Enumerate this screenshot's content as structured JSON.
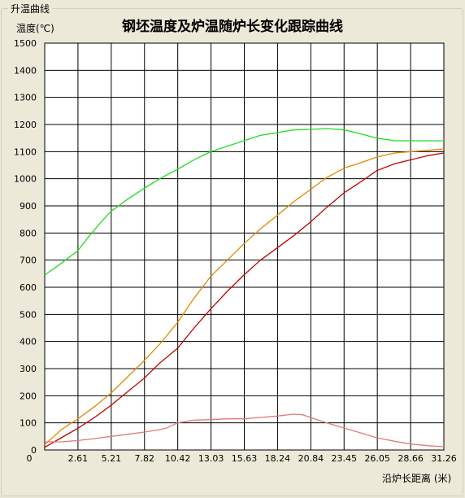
{
  "group_title": "升温曲线",
  "chart_data": {
    "type": "line",
    "title": "钢坯温度及炉温随炉长变化跟踪曲线",
    "ylabel": "温度(℃)",
    "xlabel": "沿炉长距离 (米)",
    "ylim": [
      0,
      1500
    ],
    "xlim": [
      0,
      31.26
    ],
    "grid": true,
    "yticks": [
      "0",
      "100",
      "200",
      "300",
      "400",
      "500",
      "600",
      "700",
      "800",
      "900",
      "1000",
      "1100",
      "1200",
      "1300",
      "1400",
      "1500"
    ],
    "xticks": [
      "0",
      "2.61",
      "5.21",
      "7.82",
      "10.42",
      "13.03",
      "15.63",
      "18.24",
      "20.84",
      "23.45",
      "26.05",
      "28.66",
      "31.26"
    ],
    "series": [
      {
        "color": "#22dd22",
        "x": [
          0,
          1.2,
          2.6,
          3.5,
          4.5,
          5.2,
          6.5,
          7.8,
          9.0,
          10.4,
          11.7,
          13.0,
          14.3,
          15.6,
          16.9,
          18.2,
          19.5,
          20.8,
          22.1,
          23.5,
          24.8,
          26.0,
          27.4,
          28.7,
          30.0,
          31.26
        ],
        "y": [
          645,
          685,
          735,
          790,
          845,
          880,
          925,
          965,
          1000,
          1035,
          1070,
          1100,
          1120,
          1140,
          1160,
          1170,
          1180,
          1182,
          1185,
          1180,
          1165,
          1150,
          1140,
          1140,
          1140,
          1140
        ]
      },
      {
        "color": "#e08a00",
        "x": [
          0,
          1.3,
          2.6,
          3.9,
          5.2,
          6.5,
          7.8,
          9.0,
          10.4,
          11.7,
          13.0,
          14.3,
          15.6,
          16.9,
          18.2,
          19.5,
          20.8,
          22.1,
          23.5,
          24.8,
          26.0,
          27.4,
          28.7,
          30.0,
          31.26
        ],
        "y": [
          20,
          75,
          115,
          160,
          210,
          270,
          330,
          390,
          470,
          560,
          640,
          700,
          760,
          815,
          865,
          915,
          960,
          1005,
          1040,
          1060,
          1080,
          1095,
          1100,
          1105,
          1110
        ]
      },
      {
        "color": "#c00000",
        "x": [
          0,
          1.3,
          2.6,
          3.9,
          5.2,
          6.5,
          7.8,
          9.0,
          10.4,
          11.7,
          13.0,
          14.3,
          15.6,
          16.9,
          18.2,
          19.5,
          20.8,
          22.1,
          23.5,
          24.8,
          26.0,
          27.4,
          28.7,
          30.0,
          31.26
        ],
        "y": [
          10,
          45,
          80,
          120,
          165,
          215,
          265,
          320,
          375,
          450,
          520,
          585,
          645,
          700,
          745,
          790,
          840,
          895,
          950,
          990,
          1030,
          1055,
          1070,
          1085,
          1095
        ]
      },
      {
        "color": "#e07a7a",
        "x": [
          0,
          1.3,
          2.6,
          3.9,
          5.2,
          6.5,
          7.8,
          9.0,
          9.5,
          10.4,
          11.7,
          13.0,
          14.3,
          15.6,
          16.9,
          18.2,
          19.5,
          20.2,
          20.8,
          22.1,
          23.5,
          24.8,
          26.0,
          27.4,
          28.7,
          30.0,
          31.26
        ],
        "y": [
          30,
          30,
          35,
          42,
          50,
          58,
          66,
          75,
          80,
          100,
          110,
          112,
          115,
          115,
          120,
          125,
          132,
          130,
          120,
          100,
          80,
          62,
          45,
          32,
          22,
          16,
          12
        ]
      }
    ]
  }
}
